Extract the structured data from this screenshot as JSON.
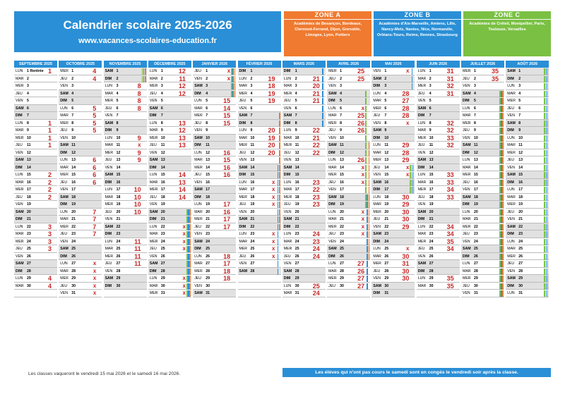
{
  "header": {
    "title": "Calendrier scolaire 2025-2026",
    "website": "www.vacances-scolaires-education.fr"
  },
  "zones": [
    {
      "name": "ZONE A",
      "academies": "Académies de Besançon, Bordeaux, Clermont-Ferrand, Dijon, Grenoble, Limoges, Lyon, Poitiers",
      "color": "#ef7a30"
    },
    {
      "name": "ZONE B",
      "academies": "Académies d'Aix-Marseille, Amiens, Lille, Nancy-Metz, Nantes, Nice, Normandie, Orléans-Tours, Reims, Rennes, Strasbourg",
      "color": "#2a8fd6"
    },
    {
      "name": "ZONE C",
      "academies": "Académies de Créteil, Montpellier, Paris, Toulouse, Versailles",
      "color": "#7ac043"
    }
  ],
  "months": [
    {
      "name": "SEPTEMBRE 2025",
      "start": 1,
      "days": 30,
      "labels": {
        "1": "Rentrée"
      },
      "weeks": {
        "1": "1",
        "8": "1",
        "9": "1",
        "10": "1",
        "11": "1",
        "15": "2",
        "16": "2",
        "17": "2",
        "18": "2",
        "22": "3",
        "23": "3",
        "24": "3",
        "25": "3",
        "29": "4",
        "30": "4"
      },
      "bars": []
    },
    {
      "name": "OCTOBRE 2025",
      "start": 3,
      "days": 31,
      "weeks": {
        "1": "4",
        "2": "4",
        "6": "5",
        "7": "5",
        "8": "5",
        "9": "5",
        "13": "6",
        "14": "6",
        "15": "6",
        "16": "6",
        "20": "7",
        "21": "7",
        "22": "7",
        "23": "7",
        "27": "x",
        "28": "x",
        "29": "x",
        "30": "x",
        "31": "x"
      },
      "bars": []
    },
    {
      "name": "NOVEMBRE 2025",
      "start": 6,
      "days": 30,
      "weeks": {
        "3": "8",
        "4": "8",
        "5": "8",
        "6": "8",
        "10": "9",
        "11": "x",
        "12": "9",
        "13": "9",
        "17": "10",
        "18": "10",
        "19": "10",
        "20": "10",
        "24": "11",
        "25": "11",
        "26": "11",
        "27": "11"
      },
      "bars": [
        {
          "from": 1,
          "to": 2,
          "zones": [
            "a",
            "b",
            "c"
          ]
        }
      ]
    },
    {
      "name": "DÉCEMBRE 2025",
      "start": 1,
      "days": 31,
      "weeks": {
        "1": "12",
        "2": "11",
        "3": "12",
        "4": "12",
        "8": "13",
        "9": "12",
        "10": "13",
        "11": "13",
        "15": "14",
        "16": "13",
        "17": "14",
        "18": "14",
        "22": "x",
        "23": "x",
        "24": "x",
        "25": "x",
        "29": "x",
        "30": "x",
        "31": "x"
      },
      "bars": [
        {
          "from": 20,
          "to": 31,
          "zones": [
            "a",
            "b",
            "c"
          ]
        }
      ]
    },
    {
      "name": "JANVIER 2026",
      "start": 4,
      "days": 31,
      "weeks": {
        "1": "x",
        "2": "x",
        "5": "15",
        "6": "14",
        "7": "15",
        "8": "15",
        "12": "16",
        "13": "15",
        "14": "16",
        "15": "16",
        "19": "17",
        "20": "16",
        "21": "17",
        "22": "17",
        "26": "18",
        "27": "17",
        "28": "18",
        "29": "18"
      },
      "bars": [
        {
          "from": 1,
          "to": 4,
          "zones": [
            "a",
            "b",
            "c"
          ]
        }
      ]
    },
    {
      "name": "FÉVRIER 2026",
      "start": 7,
      "days": 28,
      "weeks": {
        "2": "19",
        "3": "18",
        "4": "19",
        "5": "19",
        "9": "20",
        "10": "19",
        "11": "20",
        "12": "20",
        "16": "x",
        "17": "x",
        "18": "x",
        "19": "x",
        "23": "x",
        "24": "x",
        "25": "x",
        "26": "x"
      },
      "bars": [
        {
          "from": 7,
          "to": 22,
          "zones": [
            "a"
          ]
        },
        {
          "from": 14,
          "to": 28,
          "zones": [
            "b"
          ]
        }
      ]
    },
    {
      "name": "MARS 2026",
      "start": 7,
      "days": 31,
      "weeks": {
        "2": "21",
        "3": "20",
        "4": "21",
        "5": "21",
        "9": "22",
        "10": "21",
        "11": "22",
        "12": "22",
        "16": "23",
        "17": "22",
        "18": "23",
        "19": "23",
        "23": "24",
        "24": "23",
        "25": "24",
        "26": "24",
        "30": "25",
        "31": "24"
      },
      "bars": [
        {
          "from": 1,
          "to": 8,
          "zones": [
            "b"
          ]
        }
      ]
    },
    {
      "name": "AVRIL 2026",
      "start": 3,
      "days": 30,
      "weeks": {
        "1": "25",
        "2": "25",
        "6": "x",
        "7": "25",
        "8": "26",
        "9": "26",
        "13": "26",
        "14": "x",
        "15": "x",
        "16": "x",
        "20": "x",
        "21": "x",
        "22": "x",
        "23": "x",
        "27": "27",
        "28": "26",
        "29": "27",
        "30": "27"
      },
      "bars": [
        {
          "from": 4,
          "to": 19,
          "zones": [
            "c"
          ]
        },
        {
          "from": 11,
          "to": 26,
          "zones": [
            "a"
          ]
        },
        {
          "from": 18,
          "to": 30,
          "zones": [
            "b"
          ]
        }
      ]
    },
    {
      "name": "MAI 2026",
      "start": 5,
      "days": 31,
      "weeks": {
        "1": "x",
        "4": "28",
        "5": "27",
        "6": "28",
        "7": "28",
        "8": "x",
        "11": "29",
        "12": "28",
        "13": "29",
        "14": "x",
        "15": "x",
        "18": "30",
        "19": "29",
        "20": "30",
        "21": "30",
        "22": "29",
        "25": "x",
        "26": "30",
        "27": "31",
        "28": "30",
        "29": "30"
      },
      "bars": [
        {
          "from": 1,
          "to": 3,
          "zones": [
            "b"
          ]
        },
        {
          "from": 14,
          "to": 17,
          "zones": [
            "a",
            "b",
            "c"
          ]
        }
      ]
    },
    {
      "name": "JUIN 2026",
      "start": 1,
      "days": 30,
      "weeks": {
        "1": "31",
        "2": "31",
        "3": "32",
        "4": "31",
        "8": "32",
        "9": "32",
        "10": "33",
        "11": "32",
        "15": "33",
        "16": "33",
        "17": "34",
        "18": "33",
        "22": "34",
        "23": "34",
        "24": "35",
        "25": "34",
        "29": "35",
        "30": "35"
      },
      "bars": []
    },
    {
      "name": "JUILLET 2026",
      "start": 3,
      "days": 31,
      "weeks": {
        "1": "35",
        "2": "35"
      },
      "bars": [
        {
          "from": 4,
          "to": 31,
          "zones": [
            "a",
            "b",
            "c"
          ]
        }
      ]
    },
    {
      "name": "AOÛT 2026",
      "start": 6,
      "days": 31,
      "weeks": {},
      "bars": [
        {
          "from": 1,
          "to": 31,
          "zones": [
            "a",
            "b",
            "c"
          ]
        }
      ]
    }
  ],
  "day_names": [
    "LUN",
    "MAR",
    "MER",
    "JEU",
    "VEN",
    "SAM",
    "DIM"
  ],
  "footer": {
    "note_left": "Les classes vaqueront le vendredi 15 mai 2026 et le samedi 16 mai 2026.",
    "note_right": "Les élèves qui n'ont pas cours le samedi sont en congés le vendredi soir après la classe."
  }
}
